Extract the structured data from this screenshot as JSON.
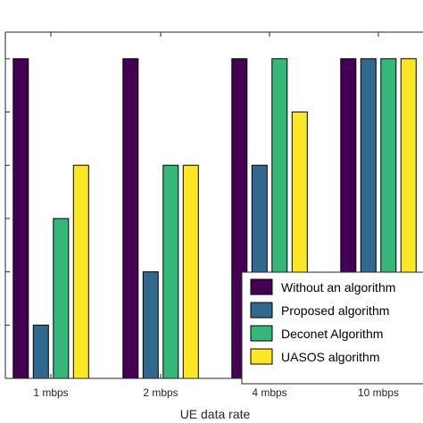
{
  "chart_data": {
    "type": "bar",
    "title": "",
    "xlabel": "UE data rate",
    "ylabel": "",
    "categories": [
      "1 mbps",
      "2 mbps",
      "4 mbps",
      "10 mbps"
    ],
    "ylim": [
      0,
      6.5
    ],
    "yticks": [
      0,
      1,
      2,
      3,
      4,
      5,
      6
    ],
    "grid": false,
    "legend_position": "bottom-right",
    "series": [
      {
        "name": "Without an algorithm",
        "color": "#440154",
        "values": [
          6,
          6,
          6,
          6
        ]
      },
      {
        "name": "Proposed algorithm",
        "color": "#31688e",
        "values": [
          1,
          2,
          4,
          6
        ]
      },
      {
        "name": "Deconet Algorithm",
        "color": "#35b779",
        "values": [
          3,
          4,
          6,
          6
        ]
      },
      {
        "name": "UASOS algorithm",
        "color": "#fde725",
        "values": [
          4,
          4,
          5,
          6
        ]
      }
    ]
  }
}
